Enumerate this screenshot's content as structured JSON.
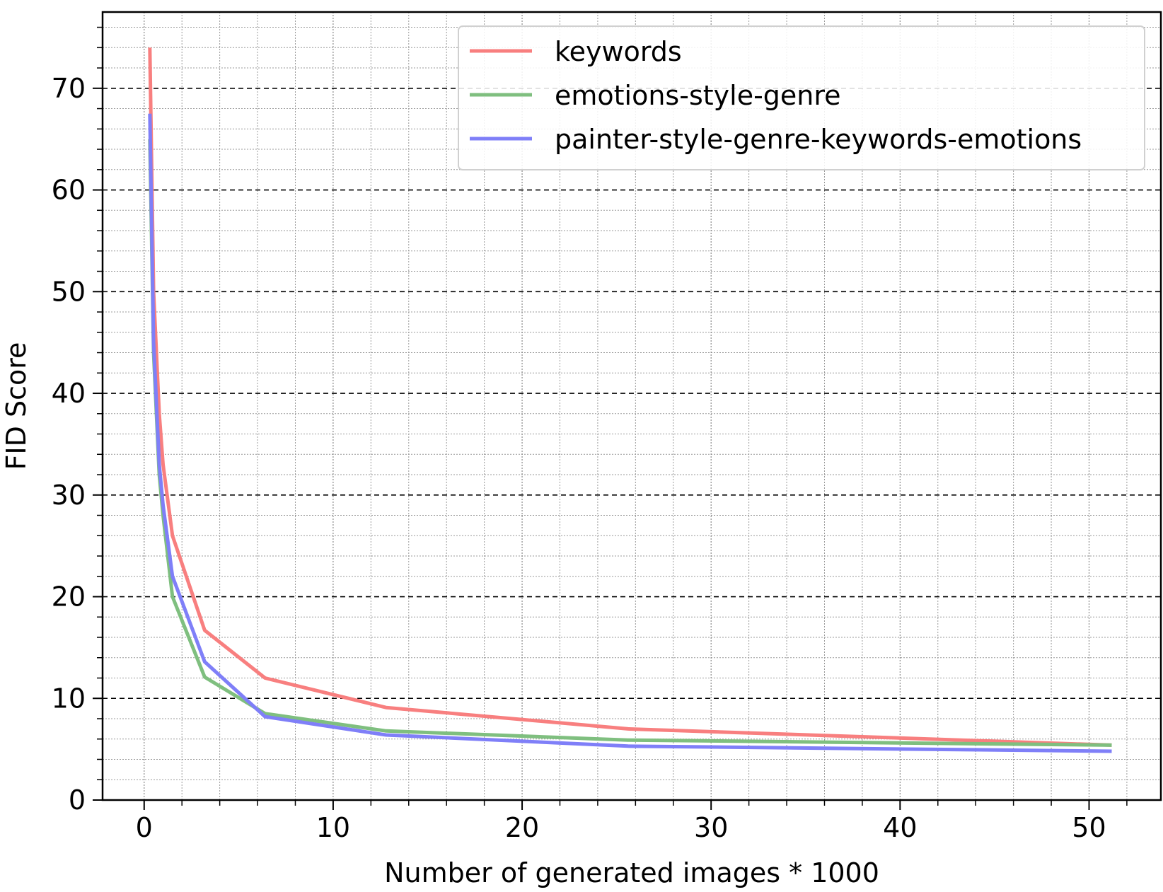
{
  "chart_data": {
    "type": "line",
    "xlabel": "Number of generated images * 1000",
    "ylabel": "FID Score",
    "xlim": [
      -2.2,
      53.8
    ],
    "ylim": [
      0,
      77.5
    ],
    "xticks": [
      0,
      10,
      20,
      30,
      40,
      50
    ],
    "yticks": [
      0,
      10,
      20,
      30,
      40,
      50,
      60,
      70
    ],
    "grid": {
      "major": "dashed",
      "minor": "dotted"
    },
    "legend_position": "top-right",
    "series": [
      {
        "name": "keywords",
        "color": "#f87f7f",
        "x": [
          0.3,
          0.5,
          0.8,
          1.0,
          1.5,
          3.2,
          6.4,
          12.8,
          25.6,
          51.2
        ],
        "y": [
          74.0,
          50.0,
          38.0,
          33.0,
          26.0,
          16.7,
          12.0,
          9.1,
          7.0,
          5.4
        ]
      },
      {
        "name": "emotions-style-genre",
        "color": "#7fbf7f",
        "x": [
          0.3,
          0.5,
          0.8,
          1.0,
          1.5,
          3.2,
          6.4,
          12.8,
          25.6,
          51.2
        ],
        "y": [
          65.0,
          44.0,
          32.0,
          28.0,
          20.0,
          12.1,
          8.5,
          6.8,
          5.9,
          5.4
        ]
      },
      {
        "name": "painter-style-genre-keywords-emotions",
        "color": "#7f7ff8",
        "x": [
          0.3,
          0.5,
          0.8,
          1.0,
          1.5,
          3.2,
          6.4,
          12.8,
          25.6,
          51.2
        ],
        "y": [
          67.5,
          45.0,
          33.0,
          29.0,
          22.0,
          13.6,
          8.2,
          6.4,
          5.3,
          4.8
        ]
      }
    ]
  }
}
